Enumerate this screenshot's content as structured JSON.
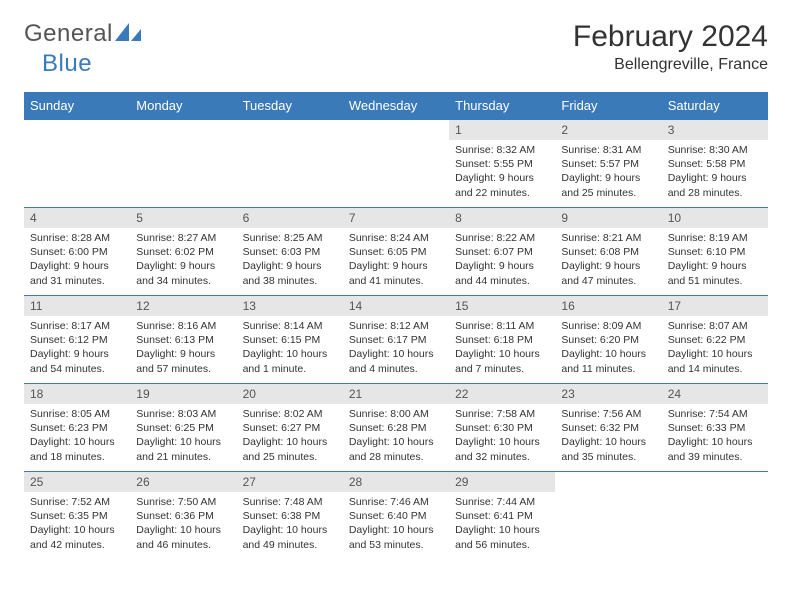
{
  "logo": {
    "general": "General",
    "blue": "Blue",
    "icon_color": "#3a7ab8"
  },
  "title": "February 2024",
  "location": "Bellengreville, France",
  "colors": {
    "header_bg": "#3a7ab8",
    "header_text": "#ffffff",
    "daynum_bg": "#e6e6e6",
    "border": "#3a7ab8",
    "text": "#333333"
  },
  "day_names": [
    "Sunday",
    "Monday",
    "Tuesday",
    "Wednesday",
    "Thursday",
    "Friday",
    "Saturday"
  ],
  "weeks": [
    [
      null,
      null,
      null,
      null,
      {
        "n": "1",
        "sunrise": "8:32 AM",
        "sunset": "5:55 PM",
        "daylight": "9 hours and 22 minutes."
      },
      {
        "n": "2",
        "sunrise": "8:31 AM",
        "sunset": "5:57 PM",
        "daylight": "9 hours and 25 minutes."
      },
      {
        "n": "3",
        "sunrise": "8:30 AM",
        "sunset": "5:58 PM",
        "daylight": "9 hours and 28 minutes."
      }
    ],
    [
      {
        "n": "4",
        "sunrise": "8:28 AM",
        "sunset": "6:00 PM",
        "daylight": "9 hours and 31 minutes."
      },
      {
        "n": "5",
        "sunrise": "8:27 AM",
        "sunset": "6:02 PM",
        "daylight": "9 hours and 34 minutes."
      },
      {
        "n": "6",
        "sunrise": "8:25 AM",
        "sunset": "6:03 PM",
        "daylight": "9 hours and 38 minutes."
      },
      {
        "n": "7",
        "sunrise": "8:24 AM",
        "sunset": "6:05 PM",
        "daylight": "9 hours and 41 minutes."
      },
      {
        "n": "8",
        "sunrise": "8:22 AM",
        "sunset": "6:07 PM",
        "daylight": "9 hours and 44 minutes."
      },
      {
        "n": "9",
        "sunrise": "8:21 AM",
        "sunset": "6:08 PM",
        "daylight": "9 hours and 47 minutes."
      },
      {
        "n": "10",
        "sunrise": "8:19 AM",
        "sunset": "6:10 PM",
        "daylight": "9 hours and 51 minutes."
      }
    ],
    [
      {
        "n": "11",
        "sunrise": "8:17 AM",
        "sunset": "6:12 PM",
        "daylight": "9 hours and 54 minutes."
      },
      {
        "n": "12",
        "sunrise": "8:16 AM",
        "sunset": "6:13 PM",
        "daylight": "9 hours and 57 minutes."
      },
      {
        "n": "13",
        "sunrise": "8:14 AM",
        "sunset": "6:15 PM",
        "daylight": "10 hours and 1 minute."
      },
      {
        "n": "14",
        "sunrise": "8:12 AM",
        "sunset": "6:17 PM",
        "daylight": "10 hours and 4 minutes."
      },
      {
        "n": "15",
        "sunrise": "8:11 AM",
        "sunset": "6:18 PM",
        "daylight": "10 hours and 7 minutes."
      },
      {
        "n": "16",
        "sunrise": "8:09 AM",
        "sunset": "6:20 PM",
        "daylight": "10 hours and 11 minutes."
      },
      {
        "n": "17",
        "sunrise": "8:07 AM",
        "sunset": "6:22 PM",
        "daylight": "10 hours and 14 minutes."
      }
    ],
    [
      {
        "n": "18",
        "sunrise": "8:05 AM",
        "sunset": "6:23 PM",
        "daylight": "10 hours and 18 minutes."
      },
      {
        "n": "19",
        "sunrise": "8:03 AM",
        "sunset": "6:25 PM",
        "daylight": "10 hours and 21 minutes."
      },
      {
        "n": "20",
        "sunrise": "8:02 AM",
        "sunset": "6:27 PM",
        "daylight": "10 hours and 25 minutes."
      },
      {
        "n": "21",
        "sunrise": "8:00 AM",
        "sunset": "6:28 PM",
        "daylight": "10 hours and 28 minutes."
      },
      {
        "n": "22",
        "sunrise": "7:58 AM",
        "sunset": "6:30 PM",
        "daylight": "10 hours and 32 minutes."
      },
      {
        "n": "23",
        "sunrise": "7:56 AM",
        "sunset": "6:32 PM",
        "daylight": "10 hours and 35 minutes."
      },
      {
        "n": "24",
        "sunrise": "7:54 AM",
        "sunset": "6:33 PM",
        "daylight": "10 hours and 39 minutes."
      }
    ],
    [
      {
        "n": "25",
        "sunrise": "7:52 AM",
        "sunset": "6:35 PM",
        "daylight": "10 hours and 42 minutes."
      },
      {
        "n": "26",
        "sunrise": "7:50 AM",
        "sunset": "6:36 PM",
        "daylight": "10 hours and 46 minutes."
      },
      {
        "n": "27",
        "sunrise": "7:48 AM",
        "sunset": "6:38 PM",
        "daylight": "10 hours and 49 minutes."
      },
      {
        "n": "28",
        "sunrise": "7:46 AM",
        "sunset": "6:40 PM",
        "daylight": "10 hours and 53 minutes."
      },
      {
        "n": "29",
        "sunrise": "7:44 AM",
        "sunset": "6:41 PM",
        "daylight": "10 hours and 56 minutes."
      },
      null,
      null
    ]
  ],
  "labels": {
    "sunrise": "Sunrise:",
    "sunset": "Sunset:",
    "daylight": "Daylight:"
  }
}
